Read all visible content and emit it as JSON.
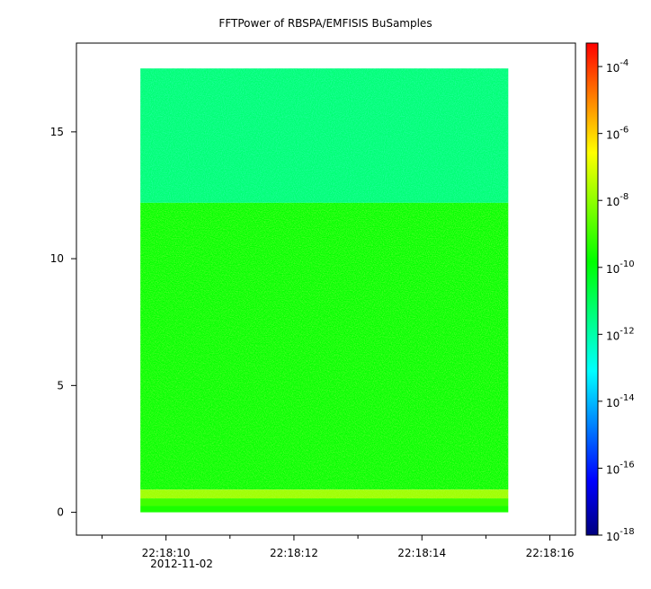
{
  "chart_data": {
    "type": "heatmap",
    "title": "FFTPower of RBSPA/EMFISIS  BuSamples",
    "xlabel": "",
    "ylabel": "",
    "x": {
      "ticks": [
        {
          "value": 10,
          "label": "22:18:10"
        },
        {
          "value": 12,
          "label": "22:18:12"
        },
        {
          "value": 14,
          "label": "22:18:14"
        },
        {
          "value": 16,
          "label": "22:18:16"
        }
      ],
      "minor_ticks": [
        9.0,
        11.0,
        13.0,
        15.0
      ],
      "range_seconds": [
        8.6,
        16.4
      ],
      "date_label": "2012-11-02"
    },
    "y": {
      "ticks": [
        0,
        5,
        10,
        15
      ],
      "range": [
        -0.9,
        18.5
      ]
    },
    "data_extent": {
      "x_seconds": [
        9.6,
        15.35
      ],
      "y": [
        0,
        17.5
      ]
    },
    "colorbar": {
      "scale": "log",
      "range_exponent": [
        -18,
        -3.3
      ],
      "tick_exponents": [
        -18,
        -16,
        -14,
        -12,
        -10,
        -8,
        -6,
        -4
      ],
      "tick_labels": [
        "10-18",
        "10-16",
        "10-14",
        "10-12",
        "10-10",
        "10-8",
        "10-6",
        "10-4"
      ],
      "colormap": [
        "#00007f",
        "#0000ff",
        "#0080ff",
        "#00ffff",
        "#00ff80",
        "#00ff00",
        "#80ff00",
        "#ffff00",
        "#ff8000",
        "#ff0000"
      ]
    },
    "bands": [
      {
        "y": [
          0,
          0.25
        ],
        "log_power": -9.5
      },
      {
        "y": [
          0.25,
          0.55
        ],
        "log_power": -9.0
      },
      {
        "y": [
          0.55,
          0.9
        ],
        "log_power": -7.8
      },
      {
        "y": [
          0.9,
          12.2
        ],
        "log_power": -9.8
      },
      {
        "y": [
          12.2,
          17.5
        ],
        "log_power": -11.3
      }
    ]
  }
}
